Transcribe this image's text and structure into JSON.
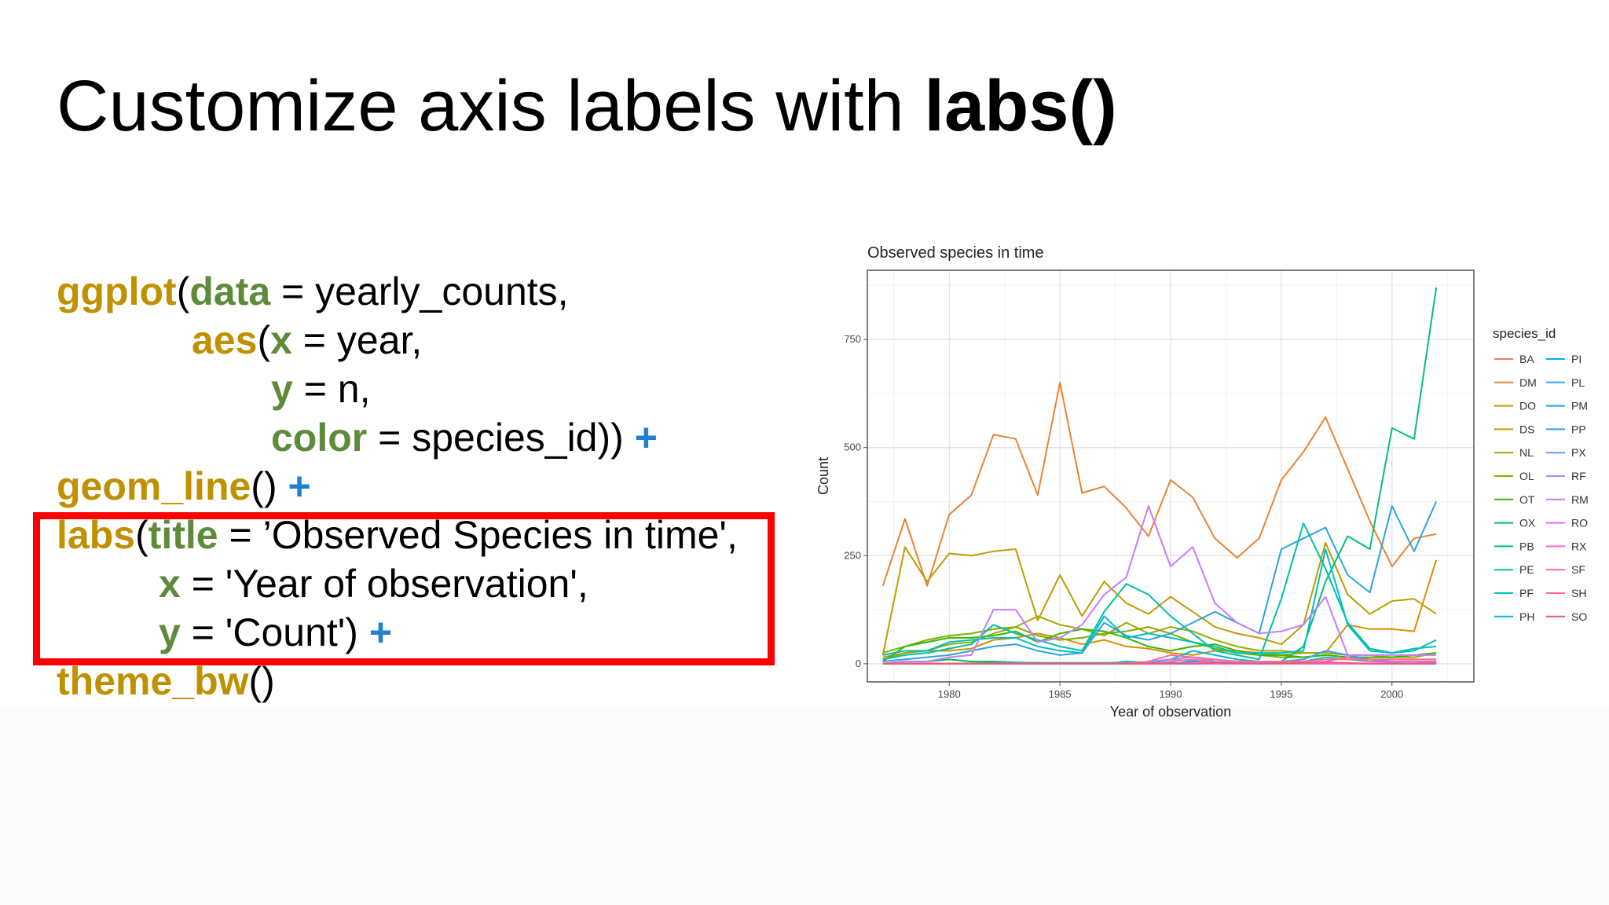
{
  "slide": {
    "title_prefix": "Customize axis labels with ",
    "title_bold": "labs()"
  },
  "code": {
    "l1_fn": "ggplot",
    "l1_p1": "(",
    "l1_arg": "data",
    "l1_rest": " = yearly_counts,",
    "l2_fn": "aes",
    "l2_p1": "(",
    "l2_arg": "x",
    "l2_rest": " = year,",
    "l3_arg": "y",
    "l3_rest": " = n,",
    "l4_arg": "color",
    "l4_rest": " = species_id)) ",
    "l4_plus": "+",
    "l5_fn": "geom_line",
    "l5_rest": "() ",
    "l5_plus": "+",
    "l6_fn": "labs",
    "l6_p1": "(",
    "l6_arg": "title",
    "l6_rest": " = ’Observed Species in time',",
    "l7_arg": "x",
    "l7_rest": " = 'Year of observation',",
    "l8_arg": "y",
    "l8_rest": " = 'Count') ",
    "l8_plus": "+",
    "l9_fn": "theme_bw",
    "l9_rest": "()"
  },
  "colors": {
    "function": "#BF9000",
    "argument": "#5E8A3A",
    "plus": "#1F7FD1",
    "highlight": "#FF0000"
  },
  "chart_data": {
    "type": "line",
    "title": "Observed species in time",
    "xlabel": "Year of observation",
    "ylabel": "Count",
    "xlim": [
      1976.3,
      2003.7
    ],
    "ylim": [
      -42,
      910
    ],
    "xticks": [
      1980,
      1985,
      1990,
      1995,
      2000
    ],
    "yticks": [
      0,
      250,
      500,
      750
    ],
    "grid": true,
    "legend": {
      "title": "species_id",
      "placement": "right"
    },
    "x": [
      1977,
      1978,
      1979,
      1980,
      1981,
      1982,
      1983,
      1984,
      1985,
      1986,
      1987,
      1988,
      1989,
      1990,
      1991,
      1992,
      1993,
      1994,
      1995,
      1996,
      1997,
      1998,
      1999,
      2000,
      2001,
      2002
    ],
    "series": [
      {
        "name": "BA",
        "color": "#F8766D",
        "values": [
          0,
          0,
          0,
          0,
          0,
          0,
          0,
          0,
          0,
          0,
          0,
          0,
          3,
          10,
          6,
          1,
          1,
          0,
          0,
          0,
          0,
          0,
          0,
          0,
          0,
          0
        ]
      },
      {
        "name": "DM",
        "color": "#EA8331",
        "values": [
          180,
          335,
          180,
          345,
          390,
          530,
          520,
          390,
          650,
          395,
          410,
          360,
          295,
          425,
          385,
          290,
          245,
          290,
          425,
          490,
          570,
          450,
          330,
          225,
          290,
          300
        ]
      },
      {
        "name": "DO",
        "color": "#D89000",
        "values": [
          15,
          25,
          30,
          30,
          35,
          55,
          60,
          70,
          60,
          45,
          55,
          40,
          35,
          25,
          20,
          30,
          30,
          25,
          20,
          25,
          25,
          90,
          80,
          80,
          75,
          240
        ]
      },
      {
        "name": "DS",
        "color": "#C09B00",
        "values": [
          20,
          270,
          190,
          255,
          250,
          260,
          265,
          100,
          205,
          110,
          190,
          140,
          115,
          155,
          120,
          85,
          70,
          60,
          45,
          90,
          280,
          160,
          115,
          145,
          150,
          115
        ]
      },
      {
        "name": "NL",
        "color": "#A3A500",
        "values": [
          10,
          25,
          30,
          45,
          50,
          70,
          85,
          110,
          90,
          80,
          65,
          95,
          70,
          85,
          75,
          55,
          40,
          30,
          30,
          25,
          25,
          20,
          20,
          15,
          15,
          25
        ]
      },
      {
        "name": "OL",
        "color": "#7CAE00",
        "values": [
          25,
          40,
          55,
          65,
          70,
          80,
          85,
          65,
          55,
          60,
          70,
          75,
          85,
          70,
          50,
          35,
          25,
          20,
          15,
          15,
          20,
          15,
          10,
          10,
          10,
          10
        ]
      },
      {
        "name": "OT",
        "color": "#39B600",
        "values": [
          5,
          40,
          50,
          60,
          60,
          65,
          75,
          50,
          70,
          80,
          75,
          60,
          40,
          30,
          40,
          45,
          30,
          20,
          20,
          15,
          20,
          15,
          15,
          15,
          20,
          25
        ]
      },
      {
        "name": "OX",
        "color": "#00BB4E",
        "values": [
          0,
          5,
          5,
          10,
          5,
          5,
          3,
          2,
          1,
          0,
          0,
          5,
          3,
          2,
          1,
          0,
          0,
          0,
          0,
          0,
          0,
          0,
          0,
          0,
          0,
          0
        ]
      },
      {
        "name": "PB",
        "color": "#00BF7D",
        "values": [
          0,
          0,
          0,
          0,
          0,
          0,
          0,
          0,
          0,
          0,
          0,
          0,
          0,
          0,
          0,
          0,
          0,
          0,
          5,
          40,
          190,
          295,
          265,
          545,
          520,
          870
        ]
      },
      {
        "name": "PE",
        "color": "#00C1A3",
        "values": [
          10,
          20,
          25,
          35,
          45,
          90,
          70,
          55,
          40,
          30,
          120,
          185,
          160,
          110,
          70,
          30,
          20,
          10,
          150,
          325,
          220,
          95,
          35,
          25,
          30,
          55
        ]
      },
      {
        "name": "PF",
        "color": "#00BFC4",
        "values": [
          20,
          30,
          30,
          50,
          55,
          60,
          60,
          40,
          30,
          25,
          110,
          60,
          70,
          60,
          50,
          40,
          25,
          25,
          25,
          30,
          265,
          90,
          30,
          25,
          35,
          40
        ]
      },
      {
        "name": "PH",
        "color": "#00BAE0",
        "values": [
          0,
          0,
          0,
          0,
          1,
          2,
          3,
          2,
          2,
          2,
          2,
          3,
          2,
          10,
          30,
          20,
          10,
          5,
          5,
          5,
          15,
          10,
          5,
          5,
          5,
          5
        ]
      },
      {
        "name": "PI",
        "color": "#00B0F6",
        "values": [
          0,
          0,
          0,
          0,
          0,
          0,
          0,
          0,
          0,
          0,
          0,
          0,
          0,
          0,
          5,
          10,
          5,
          3,
          1,
          0,
          0,
          0,
          0,
          0,
          0,
          0
        ]
      },
      {
        "name": "PL",
        "color": "#35A2FF",
        "values": [
          0,
          0,
          0,
          0,
          0,
          0,
          0,
          0,
          0,
          0,
          0,
          0,
          0,
          0,
          0,
          0,
          0,
          0,
          5,
          10,
          30,
          20,
          10,
          5,
          5,
          3
        ]
      },
      {
        "name": "PM",
        "color": "#1AA3E8",
        "values": [
          0,
          0,
          0,
          0,
          0,
          0,
          0,
          0,
          0,
          0,
          0,
          0,
          0,
          0,
          0,
          0,
          0,
          0,
          0,
          0,
          0,
          0,
          0,
          0,
          0,
          0
        ]
      },
      {
        "name": "PP",
        "color": "#2CA4DE",
        "values": [
          5,
          10,
          15,
          20,
          30,
          40,
          45,
          30,
          20,
          25,
          95,
          65,
          55,
          70,
          95,
          120,
          95,
          70,
          265,
          290,
          315,
          205,
          165,
          365,
          260,
          375
        ]
      },
      {
        "name": "PX",
        "color": "#619CFF",
        "values": [
          0,
          0,
          0,
          0,
          0,
          0,
          0,
          0,
          0,
          0,
          0,
          0,
          0,
          0,
          0,
          0,
          0,
          0,
          0,
          0,
          0,
          0,
          0,
          2,
          0,
          0
        ]
      },
      {
        "name": "RF",
        "color": "#9590FF",
        "values": [
          0,
          0,
          0,
          0,
          0,
          0,
          0,
          0,
          0,
          0,
          0,
          1,
          5,
          10,
          15,
          5,
          3,
          1,
          1,
          0,
          0,
          0,
          0,
          0,
          0,
          0
        ]
      },
      {
        "name": "RM",
        "color": "#C77CFF",
        "values": [
          0,
          5,
          5,
          15,
          20,
          125,
          125,
          50,
          60,
          90,
          160,
          200,
          365,
          225,
          270,
          140,
          95,
          70,
          75,
          90,
          155,
          20,
          20,
          20,
          20,
          20
        ]
      },
      {
        "name": "RO",
        "color": "#E76BF3",
        "values": [
          0,
          0,
          0,
          0,
          0,
          0,
          0,
          0,
          0,
          0,
          0,
          0,
          0,
          0,
          1,
          2,
          1,
          0,
          0,
          0,
          0,
          0,
          0,
          0,
          0,
          0
        ]
      },
      {
        "name": "RX",
        "color": "#FA62DB",
        "values": [
          0,
          0,
          0,
          0,
          0,
          0,
          0,
          0,
          0,
          0,
          0,
          0,
          0,
          0,
          0,
          0,
          0,
          0,
          0,
          1,
          2,
          1,
          0,
          0,
          0,
          0
        ]
      },
      {
        "name": "SF",
        "color": "#FF62BC",
        "values": [
          0,
          0,
          0,
          0,
          0,
          0,
          0,
          0,
          0,
          0,
          0,
          0,
          0,
          5,
          10,
          3,
          1,
          0,
          0,
          1,
          5,
          15,
          5,
          5,
          5,
          5
        ]
      },
      {
        "name": "SH",
        "color": "#FF6C91",
        "values": [
          0,
          0,
          0,
          0,
          0,
          0,
          0,
          0,
          0,
          0,
          0,
          0,
          5,
          20,
          15,
          10,
          5,
          5,
          5,
          5,
          10,
          10,
          10,
          10,
          10,
          10
        ]
      },
      {
        "name": "SO",
        "color": "#F2566B",
        "values": [
          0,
          0,
          0,
          0,
          0,
          0,
          0,
          0,
          0,
          0,
          0,
          0,
          0,
          0,
          0,
          2,
          1,
          0,
          1,
          2,
          3,
          2,
          0,
          0,
          0,
          0
        ]
      }
    ]
  }
}
